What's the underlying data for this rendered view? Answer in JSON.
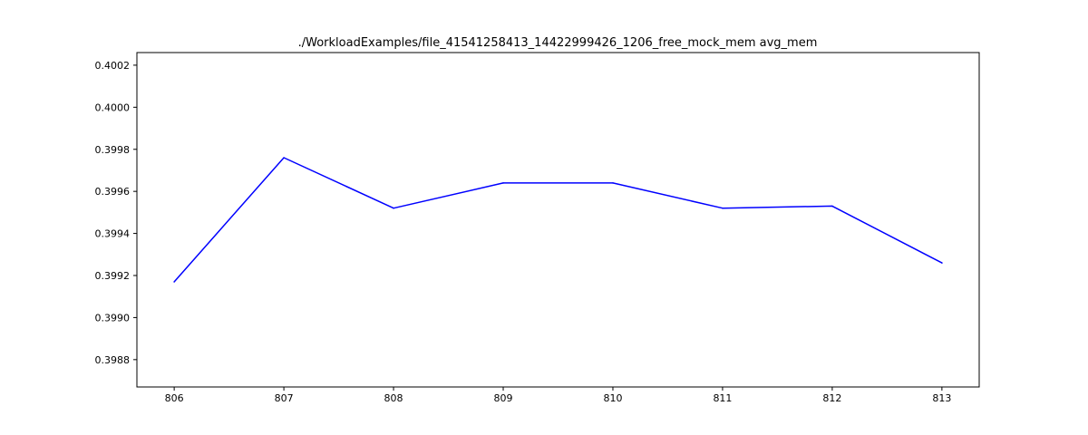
{
  "chart_data": {
    "type": "line",
    "title": "./WorkloadExamples/file_41541258413_14422999426_1206_free_mock_mem avg_mem",
    "xlabel": "",
    "ylabel": "",
    "x": [
      806,
      807,
      808,
      809,
      810,
      811,
      812,
      813
    ],
    "series": [
      {
        "values": [
          0.39917,
          0.39976,
          0.39952,
          0.39964,
          0.39964,
          0.39952,
          0.39953,
          0.39926
        ],
        "color": "#0000ff"
      }
    ],
    "xlim": [
      805.66,
      813.34
    ],
    "ylim": [
      0.39867,
      0.40026
    ],
    "x_ticks": [
      "806",
      "807",
      "808",
      "809",
      "810",
      "811",
      "812",
      "813"
    ],
    "y_ticks": [
      "0.3988",
      "0.3990",
      "0.3992",
      "0.3994",
      "0.3996",
      "0.3998",
      "0.4000",
      "0.4002"
    ],
    "grid": false,
    "legend": "none"
  }
}
